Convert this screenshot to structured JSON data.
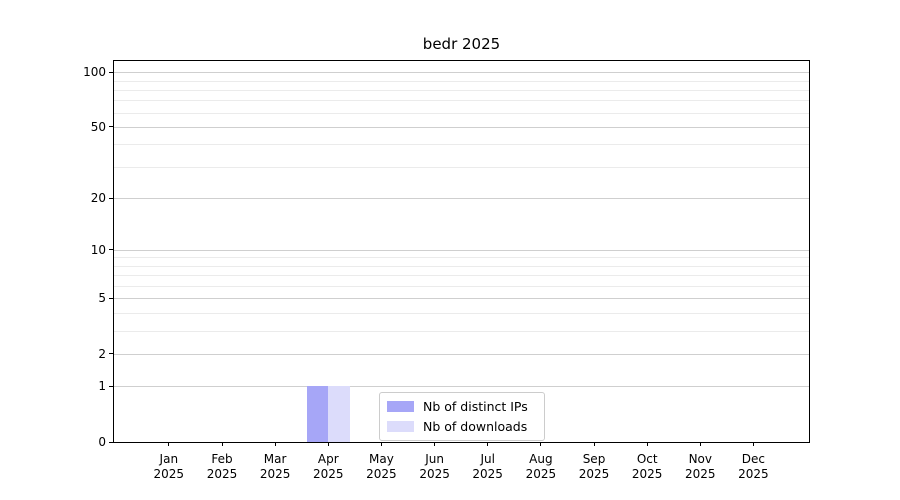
{
  "chart_data": {
    "type": "bar",
    "title": "bedr 2025",
    "xlabel": "",
    "ylabel": "",
    "categories": [
      "Jan",
      "Feb",
      "Mar",
      "Apr",
      "May",
      "Jun",
      "Jul",
      "Aug",
      "Sep",
      "Oct",
      "Nov",
      "Dec"
    ],
    "tick_year_label": "2025",
    "series": [
      {
        "name": "Nb of distinct IPs",
        "color": "#a6a6f7",
        "values": [
          0,
          0,
          0,
          1,
          0,
          0,
          0,
          0,
          0,
          0,
          0,
          0
        ]
      },
      {
        "name": "Nb of downloads",
        "color": "#dcdcfb",
        "values": [
          0,
          0,
          0,
          1,
          0,
          0,
          0,
          0,
          0,
          0,
          0,
          0
        ]
      }
    ],
    "y_ticks": [
      100,
      50,
      20,
      10,
      5,
      2,
      1,
      0
    ],
    "y_minor_gridlines": [
      90,
      80,
      70,
      60,
      40,
      30,
      9,
      8,
      7,
      6,
      4,
      3
    ],
    "y_scale": {
      "type": "log1p",
      "top_value": 115
    },
    "ylim": [
      0,
      115
    ],
    "grid": true,
    "legend_position": "lower center",
    "bar_width_frac": 0.4,
    "x_layout": {
      "first_center_frac": 0.0789,
      "step_frac": 0.07647
    },
    "colors": {
      "axis": "#000000",
      "grid_major": "#cfcfcf",
      "grid_minor": "#ebebeb",
      "background": "#ffffff"
    }
  }
}
